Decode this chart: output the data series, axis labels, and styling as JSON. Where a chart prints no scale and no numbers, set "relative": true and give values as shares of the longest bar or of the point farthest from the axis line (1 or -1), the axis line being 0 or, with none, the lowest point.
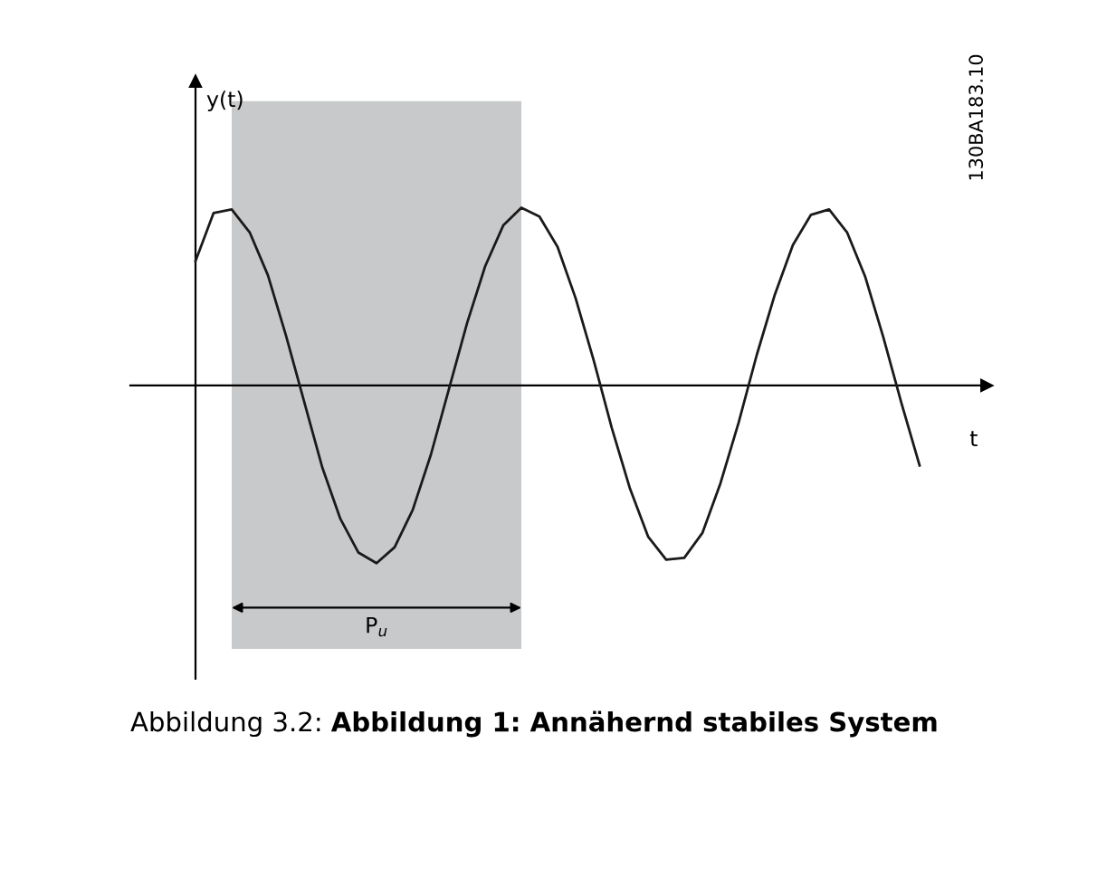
{
  "chart_data": {
    "type": "line",
    "relative": true,
    "xlabel": "t",
    "ylabel": "y(t)",
    "color": "#1a1a1a",
    "categories": [
      null,
      null,
      null,
      null,
      null,
      null,
      null,
      null,
      null,
      null,
      null,
      null,
      null,
      null,
      null,
      null,
      null,
      null,
      null,
      null,
      null,
      null,
      null,
      null,
      null,
      null,
      null,
      null,
      null,
      null,
      null,
      null,
      null,
      null,
      null,
      null,
      null,
      null,
      null,
      null,
      null
    ],
    "values": [
      0.7,
      0.97,
      0.99,
      0.86,
      0.62,
      0.28,
      -0.09,
      -0.46,
      -0.75,
      -0.94,
      -1.0,
      -0.91,
      -0.7,
      -0.39,
      -0.02,
      0.35,
      0.67,
      0.9,
      1.0,
      0.95,
      0.78,
      0.49,
      0.14,
      -0.24,
      -0.58,
      -0.85,
      -0.98,
      -0.97,
      -0.83,
      -0.55,
      -0.21,
      0.17,
      0.51,
      0.79,
      0.96,
      0.99,
      0.86,
      0.61,
      0.27,
      -0.1,
      -0.45
    ],
    "annotations": [
      "130BA183.10",
      "Abbildung 3.2:",
      "Abbildung 1: Annähernd stabiles System",
      "P$_{u}$"
    ]
  }
}
